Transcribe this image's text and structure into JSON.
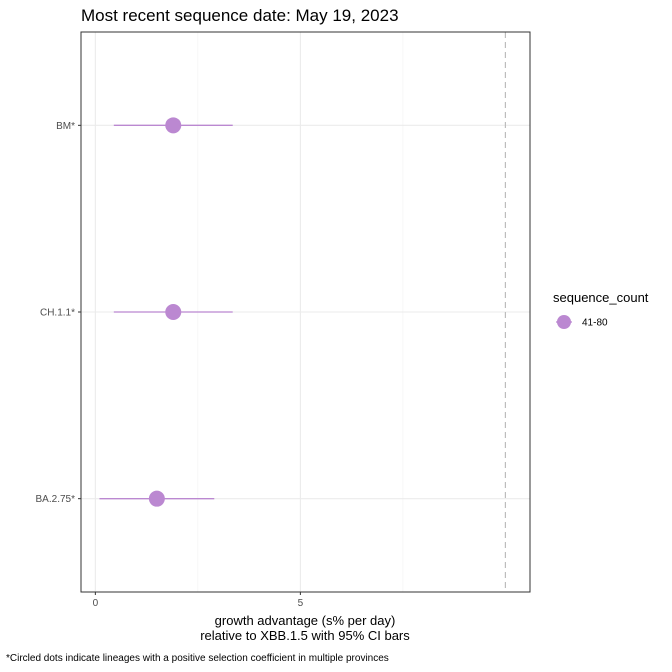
{
  "chart_data": {
    "type": "scatter",
    "title": "Most recent sequence date: May 19, 2023",
    "xlabel": [
      "growth advantage (s% per day)",
      "relative to  XBB.1.5  with 95% CI bars"
    ],
    "ylabel": "",
    "xlim": [
      -0.35,
      10.6
    ],
    "x_ticks": [
      0,
      5
    ],
    "x_minor_ticks": [
      2.5,
      7.5
    ],
    "reference_line_x": 10,
    "grid": true,
    "categories": [
      "BM*",
      "CH.1.1*",
      "BA.2.75*"
    ],
    "points": [
      {
        "label": "BM*",
        "x": 1.9,
        "ci_low": 0.45,
        "ci_high": 3.35
      },
      {
        "label": "CH.1.1*",
        "x": 1.9,
        "ci_low": 0.45,
        "ci_high": 3.35
      },
      {
        "label": "BA.2.75*",
        "x": 1.5,
        "ci_low": 0.1,
        "ci_high": 2.9
      }
    ],
    "point_color": "#bb88d1",
    "legend": {
      "title": "sequence_count",
      "placement": "right",
      "items": [
        {
          "label": "41-80",
          "color": "#bb88d1"
        }
      ]
    },
    "caption": "*Circled dots indicate lineages with a positive selection coefficient in multiple provinces"
  }
}
